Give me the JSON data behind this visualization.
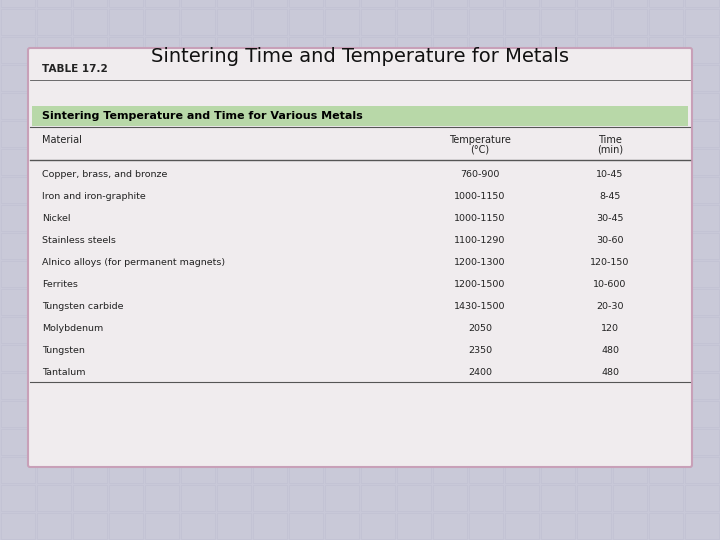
{
  "title": "Sintering Time and Temperature for Metals",
  "table_label": "TABLE 17.2",
  "table_header": "Sintering Temperature and Time for Various Metals",
  "col_header_mat": "Material",
  "col_header_temp": "Temperature",
  "col_header_temp2": "(°C)",
  "col_header_time": "Time",
  "col_header_time2": "(min)",
  "rows": [
    [
      "Copper, brass, and bronze",
      "760-900",
      "10-45"
    ],
    [
      "Iron and iron-graphite",
      "1000-1150",
      "8-45"
    ],
    [
      "Nickel",
      "1000-1150",
      "30-45"
    ],
    [
      "Stainless steels",
      "1100-1290",
      "30-60"
    ],
    [
      "Alnico alloys (for permanent magnets)",
      "1200-1300",
      "120-150"
    ],
    [
      "Ferrites",
      "1200-1500",
      "10-600"
    ],
    [
      "Tungsten carbide",
      "1430-1500",
      "20-30"
    ],
    [
      "Molybdenum",
      "2050",
      "120"
    ],
    [
      "Tungsten",
      "2350",
      "480"
    ],
    [
      "Tantalum",
      "2400",
      "480"
    ]
  ],
  "bold_rows": [],
  "title_fontsize": 14,
  "title_color": "#111111",
  "bg_color_top": "#ccccd8",
  "bg_color": "#c8c8d8",
  "card_bg": "#f0ecee",
  "header_bg": "#b8d8a8",
  "border_color": "#c8a0b8",
  "line_color": "#555555",
  "text_color": "#222222",
  "table_label_size": 7.5,
  "header_text_size": 8.0,
  "col_header_size": 7.0,
  "data_row_size": 6.8
}
